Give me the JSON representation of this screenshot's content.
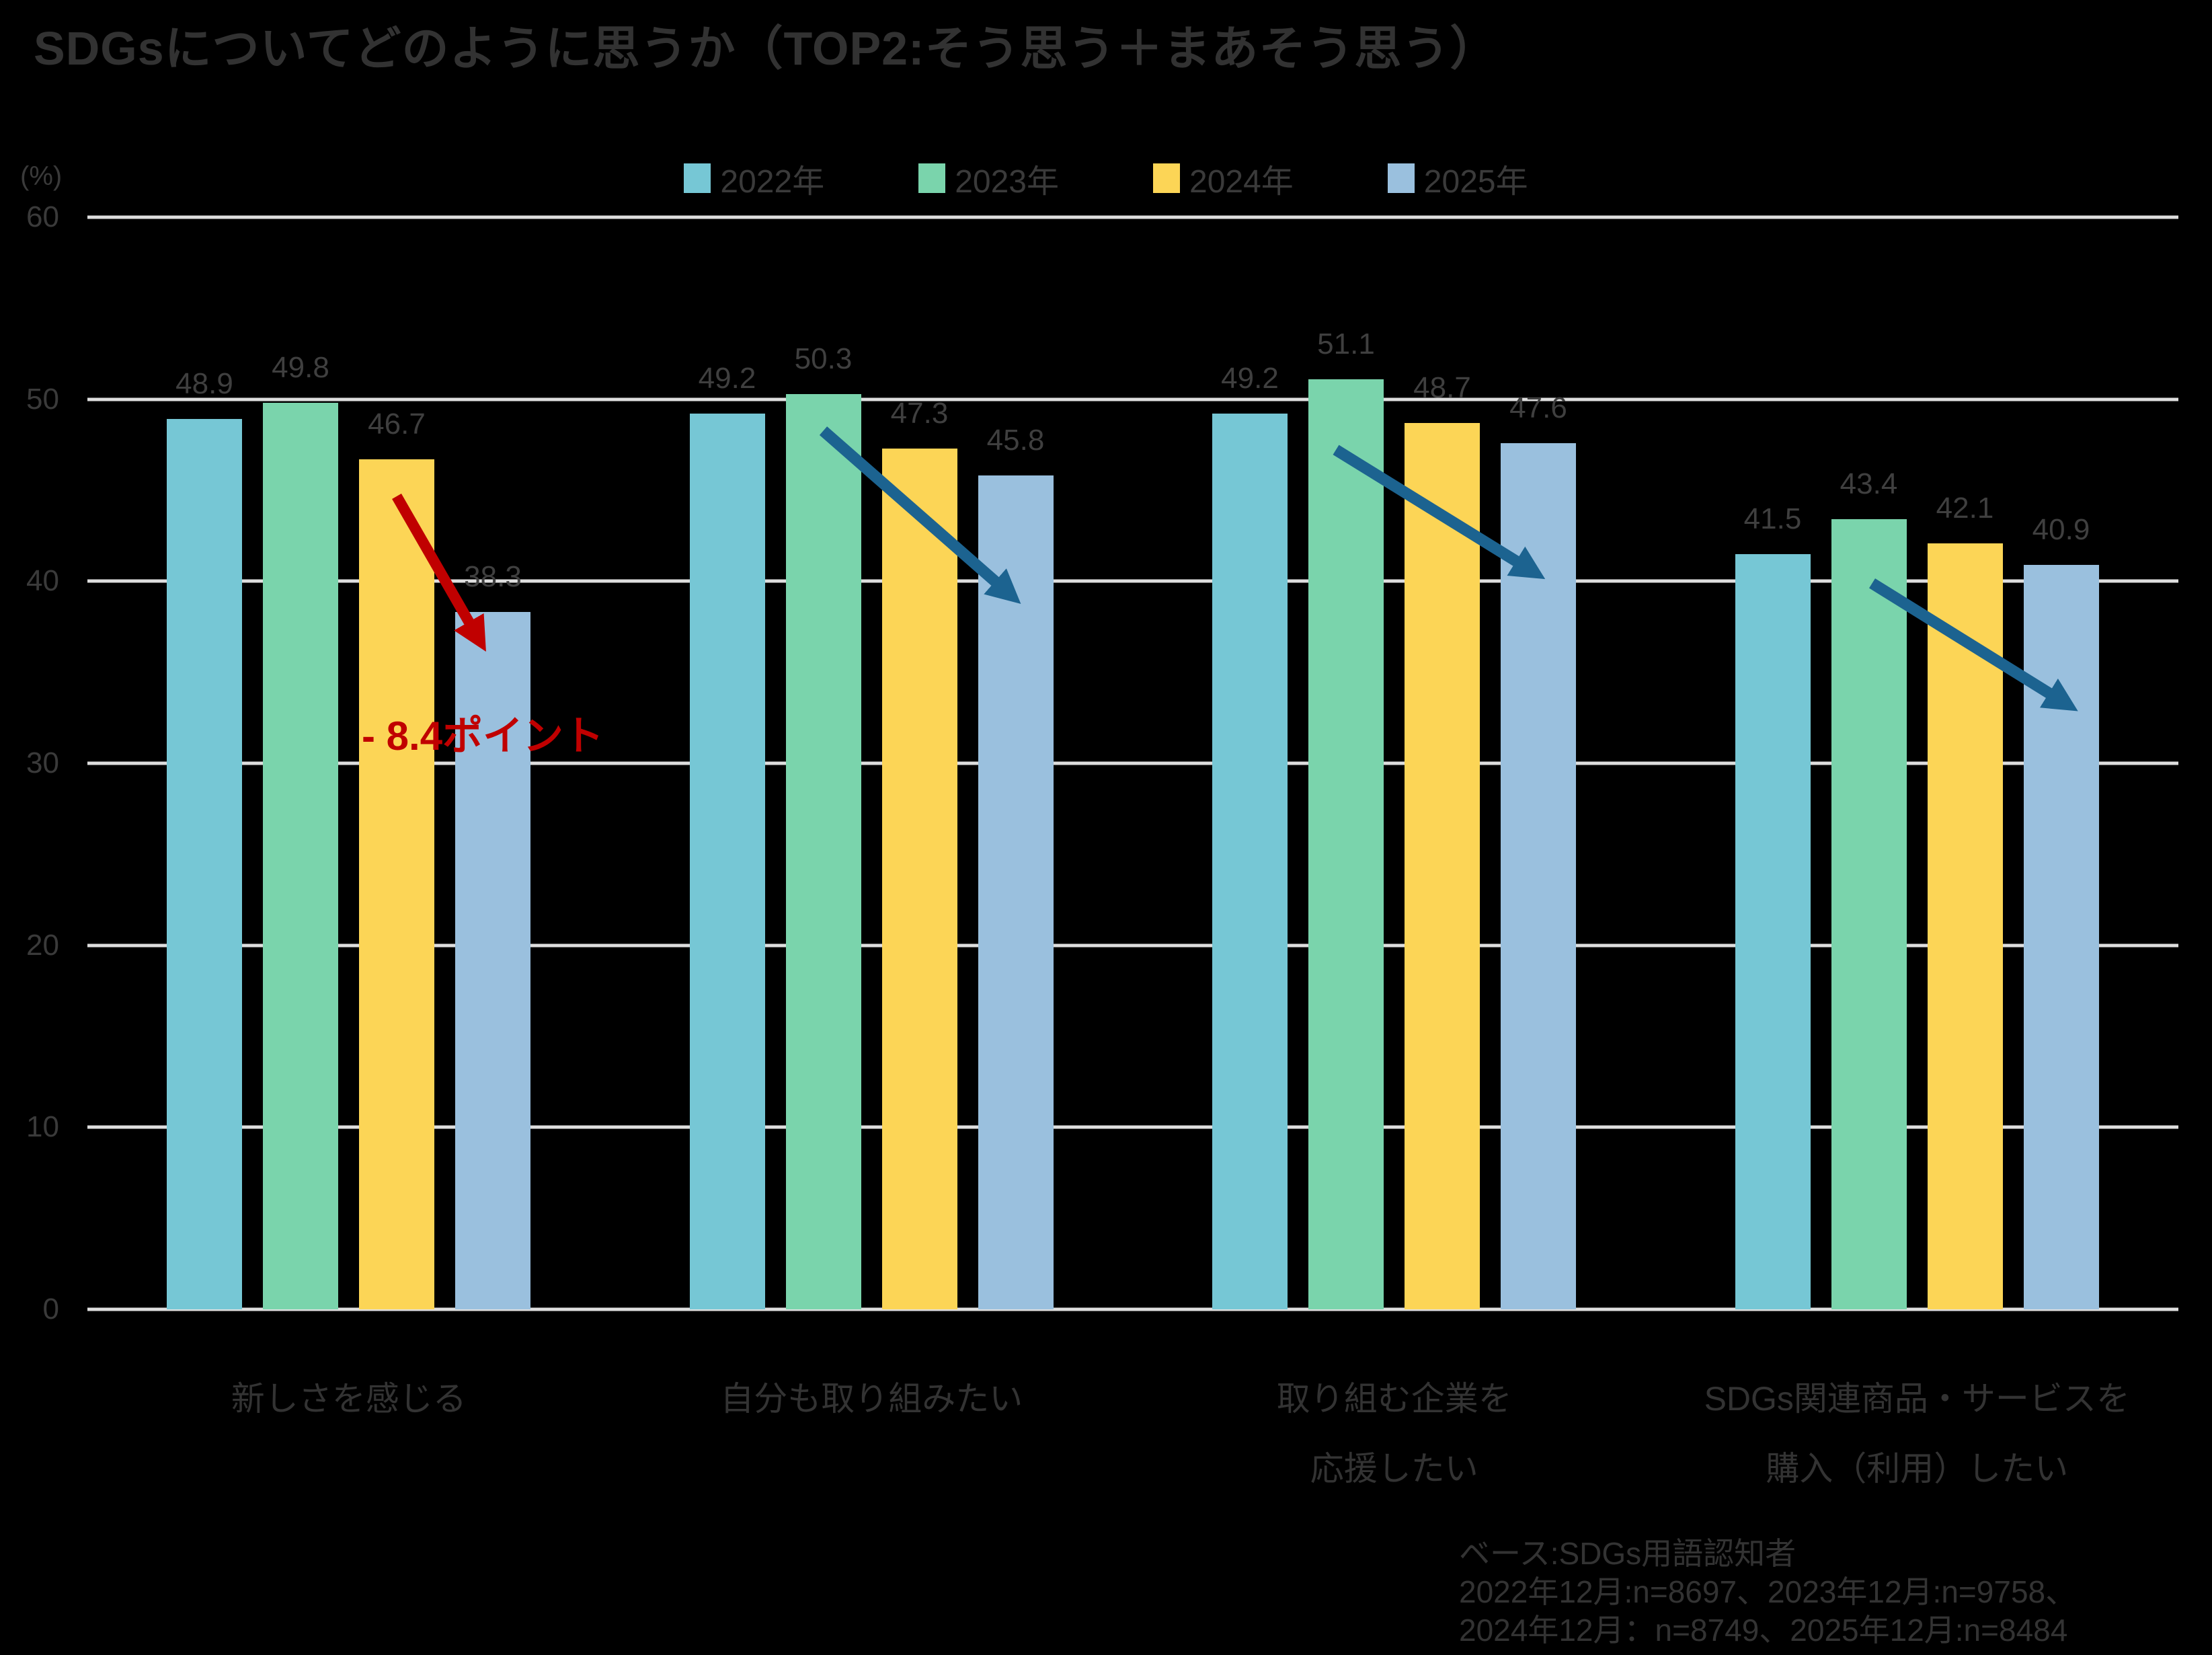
{
  "title": "SDGsについてどのように思うか（TOP2:そう思う＋まあそう思う）",
  "unit_label": "(%)",
  "legend": {
    "items": [
      {
        "label": "2022年",
        "color": "#76C7D5"
      },
      {
        "label": "2023年",
        "color": "#7AD4AC"
      },
      {
        "label": "2024年",
        "color": "#FCD556"
      },
      {
        "label": "2025年",
        "color": "#9AC0DE"
      }
    ]
  },
  "chart_data": {
    "type": "bar",
    "title": "SDGsについてどのように思うか（TOP2:そう思う＋まあそう思う）",
    "categories": [
      "新しさを感じる",
      "自分も取り組みたい",
      "取り組む企業を 応援したい",
      "SDGs関連商品・サービスを 購入（利用）したい"
    ],
    "category_lines": [
      [
        "新しさを感じる"
      ],
      [
        "自分も取り組みたい"
      ],
      [
        "取り組む企業を",
        "応援したい"
      ],
      [
        "SDGs関連商品・サービスを",
        "購入（利用）したい"
      ]
    ],
    "series": [
      {
        "name": "2022年",
        "color": "#76C7D5",
        "values": [
          48.9,
          49.2,
          49.2,
          41.5
        ]
      },
      {
        "name": "2023年",
        "color": "#7AD4AC",
        "values": [
          49.8,
          50.3,
          51.1,
          43.4
        ]
      },
      {
        "name": "2024年",
        "color": "#FCD556",
        "values": [
          46.7,
          47.3,
          48.7,
          42.1
        ]
      },
      {
        "name": "2025年",
        "color": "#9AC0DE",
        "values": [
          38.3,
          45.8,
          47.6,
          40.9
        ]
      }
    ],
    "ylabel": "(%)",
    "ylim": [
      0,
      60
    ],
    "yticks": [
      0,
      10,
      20,
      30,
      40,
      50,
      60
    ],
    "grid": true,
    "legend_position": "top",
    "decline_arrow": {
      "color": "#C00000",
      "group": 0,
      "from_series": 2,
      "to_series": 3
    },
    "trend_arrows": {
      "color": "#1C6390",
      "groups": [
        1,
        2,
        3
      ],
      "from_series": 1,
      "to_series": 3
    }
  },
  "annotation": {
    "text": "- 8.4ポイント",
    "color": "#C00000"
  },
  "footer": {
    "lines": [
      "ベース:SDGs用語認知者",
      "2022年12月:n=8697、2023年12月:n=9758、",
      "2024年12月：n=8749、2025年12月:n=8484"
    ]
  },
  "colors": {
    "background": "#000000",
    "text": "#3A3A3A",
    "gridline": "#DEDEDE",
    "trend_arrow": "#1C6390",
    "decline_arrow": "#C00000"
  }
}
